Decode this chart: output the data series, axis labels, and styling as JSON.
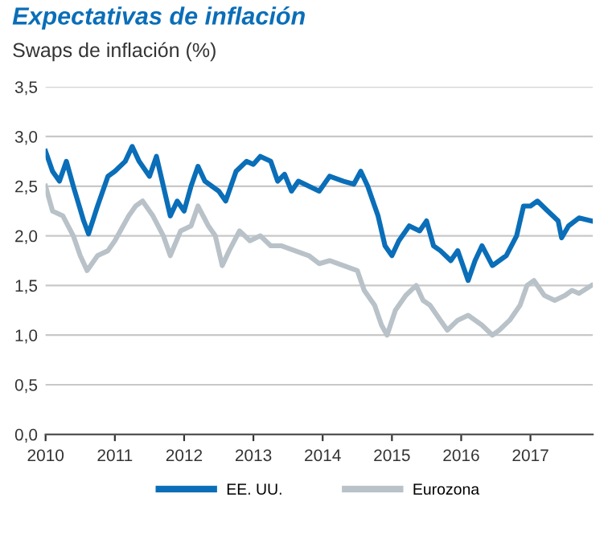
{
  "chart_data": {
    "type": "line",
    "title": "Expectativas de inflación",
    "subtitle": "Swaps de inflación (%)",
    "xlim": [
      2010,
      2017.9
    ],
    "xticks": [
      2010,
      2011,
      2012,
      2013,
      2014,
      2015,
      2016,
      2017
    ],
    "ylim": [
      0,
      3.5
    ],
    "yticks": [
      {
        "value": 0,
        "label": "0,0"
      },
      {
        "value": 0.5,
        "label": "0,5"
      },
      {
        "value": 1,
        "label": "1,0"
      },
      {
        "value": 1.5,
        "label": "1,5"
      },
      {
        "value": 2,
        "label": "2,0"
      },
      {
        "value": 2.5,
        "label": "2,5"
      },
      {
        "value": 3,
        "label": "3,0"
      },
      {
        "value": 3.5,
        "label": "3,5"
      }
    ],
    "grid": "y",
    "legend": "bottom",
    "series": [
      {
        "name": "EE. UU.",
        "color": "#0a6eb8",
        "x": [
          2010.0,
          2010.1,
          2010.2,
          2010.3,
          2010.4,
          2010.55,
          2010.62,
          2010.75,
          2010.9,
          2011.0,
          2011.15,
          2011.25,
          2011.35,
          2011.5,
          2011.6,
          2011.7,
          2011.8,
          2011.9,
          2012.0,
          2012.1,
          2012.2,
          2012.3,
          2012.5,
          2012.6,
          2012.75,
          2012.9,
          2013.0,
          2013.1,
          2013.25,
          2013.35,
          2013.45,
          2013.55,
          2013.65,
          2013.8,
          2013.95,
          2014.1,
          2014.3,
          2014.45,
          2014.55,
          2014.65,
          2014.8,
          2014.9,
          2015.0,
          2015.1,
          2015.25,
          2015.4,
          2015.5,
          2015.6,
          2015.7,
          2015.85,
          2015.95,
          2016.05,
          2016.1,
          2016.2,
          2016.3,
          2016.45,
          2016.55,
          2016.65,
          2016.8,
          2016.9,
          2017.0,
          2017.1,
          2017.25,
          2017.4,
          2017.45,
          2017.55,
          2017.7,
          2017.88
        ],
        "values": [
          2.85,
          2.65,
          2.55,
          2.75,
          2.5,
          2.15,
          2.02,
          2.3,
          2.6,
          2.65,
          2.75,
          2.9,
          2.75,
          2.6,
          2.8,
          2.5,
          2.2,
          2.35,
          2.25,
          2.5,
          2.7,
          2.55,
          2.45,
          2.35,
          2.65,
          2.75,
          2.72,
          2.8,
          2.75,
          2.55,
          2.62,
          2.45,
          2.55,
          2.5,
          2.45,
          2.6,
          2.55,
          2.52,
          2.65,
          2.5,
          2.2,
          1.9,
          1.8,
          1.95,
          2.1,
          2.05,
          2.15,
          1.9,
          1.85,
          1.75,
          1.85,
          1.65,
          1.55,
          1.75,
          1.9,
          1.7,
          1.75,
          1.8,
          2.0,
          2.3,
          2.3,
          2.35,
          2.25,
          2.15,
          1.98,
          2.1,
          2.18,
          2.15
        ]
      },
      {
        "name": "Eurozona",
        "color": "#b8c2c8",
        "x": [
          2010.0,
          2010.1,
          2010.25,
          2010.4,
          2010.5,
          2010.6,
          2010.75,
          2010.9,
          2011.0,
          2011.2,
          2011.3,
          2011.4,
          2011.55,
          2011.7,
          2011.8,
          2011.95,
          2012.1,
          2012.2,
          2012.35,
          2012.45,
          2012.55,
          2012.65,
          2012.8,
          2012.95,
          2013.1,
          2013.25,
          2013.4,
          2013.6,
          2013.8,
          2013.95,
          2014.1,
          2014.3,
          2014.5,
          2014.6,
          2014.75,
          2014.85,
          2014.93,
          2015.05,
          2015.2,
          2015.35,
          2015.45,
          2015.55,
          2015.7,
          2015.8,
          2015.95,
          2016.1,
          2016.3,
          2016.45,
          2016.55,
          2016.7,
          2016.85,
          2016.95,
          2017.05,
          2017.2,
          2017.35,
          2017.5,
          2017.6,
          2017.7,
          2017.88
        ],
        "values": [
          2.5,
          2.25,
          2.2,
          2.0,
          1.8,
          1.65,
          1.8,
          1.85,
          1.95,
          2.2,
          2.3,
          2.35,
          2.2,
          2.0,
          1.8,
          2.05,
          2.1,
          2.3,
          2.1,
          2.0,
          1.7,
          1.85,
          2.05,
          1.95,
          2.0,
          1.9,
          1.9,
          1.85,
          1.8,
          1.72,
          1.75,
          1.7,
          1.65,
          1.45,
          1.3,
          1.1,
          1.0,
          1.25,
          1.4,
          1.5,
          1.35,
          1.3,
          1.15,
          1.05,
          1.15,
          1.2,
          1.1,
          1.0,
          1.05,
          1.15,
          1.3,
          1.5,
          1.55,
          1.4,
          1.35,
          1.4,
          1.45,
          1.42,
          1.5
        ]
      }
    ]
  }
}
